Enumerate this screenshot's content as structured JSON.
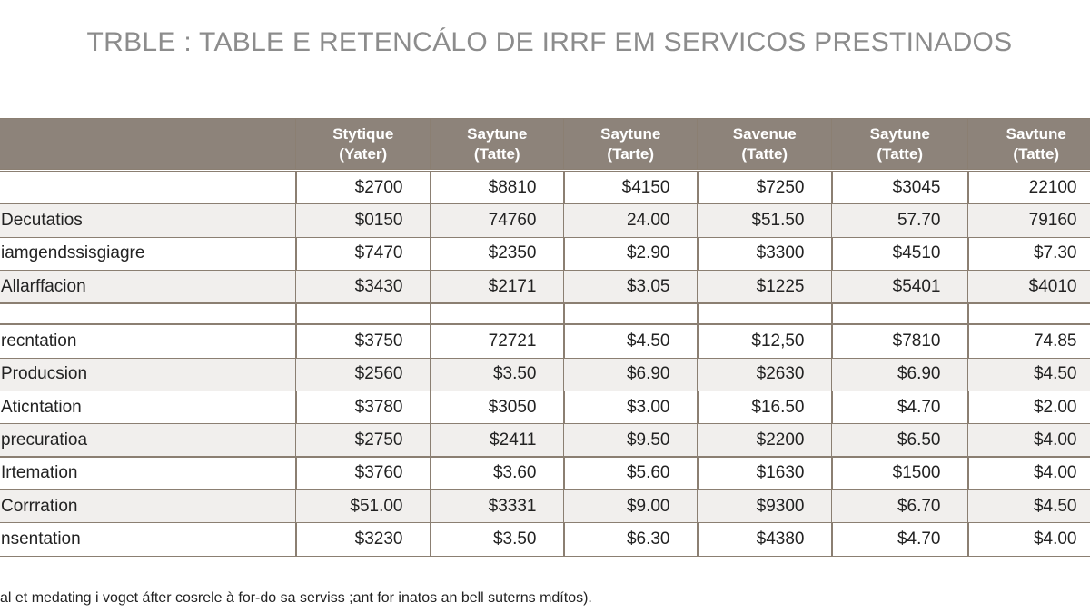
{
  "title": "TRBLE : TABLE E RETENCÁLO DE IRRF EM SERVICOS PRESTINADOS",
  "table": {
    "header": [
      [
        "Stytique",
        "(Yater)"
      ],
      [
        "Saytune",
        "(Tatte)"
      ],
      [
        "Saytune",
        "(Tarte)"
      ],
      [
        "Savenue",
        "(Tatte)"
      ],
      [
        "Saytune",
        "(Tatte)"
      ],
      [
        "Savtune",
        "(Tatte)"
      ]
    ],
    "groups": [
      {
        "rows": [
          [
            null,
            "$2700",
            "$8810",
            "$4150",
            "$7250",
            "$3045",
            "22100"
          ],
          [
            "Decutatios",
            "$0150",
            "74760",
            "24.00",
            "$51.50",
            "57.70",
            "79160"
          ],
          [
            "iamgendssisgiagre",
            "$7470",
            "$2350",
            "$2.90",
            "$3300",
            "$4510",
            "$7.30"
          ],
          [
            "Allarffacion",
            "$3430",
            "$2171",
            "$3.05",
            "$1225",
            "$5401",
            "$4010"
          ]
        ]
      },
      {
        "rows": [
          [
            "recntation",
            "$3750",
            "72721",
            "$4.50",
            "$12,50",
            "$7810",
            "74.85"
          ],
          [
            "Producsion",
            "$2560",
            "$3.50",
            "$6.90",
            "$2630",
            "$6.90",
            "$4.50"
          ],
          [
            "Aticntation",
            "$3780",
            "$3050",
            "$3.00",
            "$16.50",
            "$4.70",
            "$2.00"
          ],
          [
            "precuratioa",
            "$2750",
            "$2411",
            "$9.50",
            "$2200",
            "$6.50",
            "$4.00"
          ],
          [
            "Irtemation",
            "$3760",
            "$3.60",
            "$5.60",
            "$1630",
            "$1500",
            "$4.00"
          ],
          [
            "Corrration",
            "$51.00",
            "$3331",
            "$9.00",
            "$9300",
            "$6.70",
            "$4.50"
          ],
          [
            "nsentation",
            "$3230",
            "$3.50",
            "$6.30",
            "$4380",
            "$4.70",
            "$4.00"
          ]
        ]
      }
    ]
  },
  "footnote": "al et medating i voget áfter cosrele à for-do sa serviss ;ant for inatos an bell suterns mdítos)."
}
